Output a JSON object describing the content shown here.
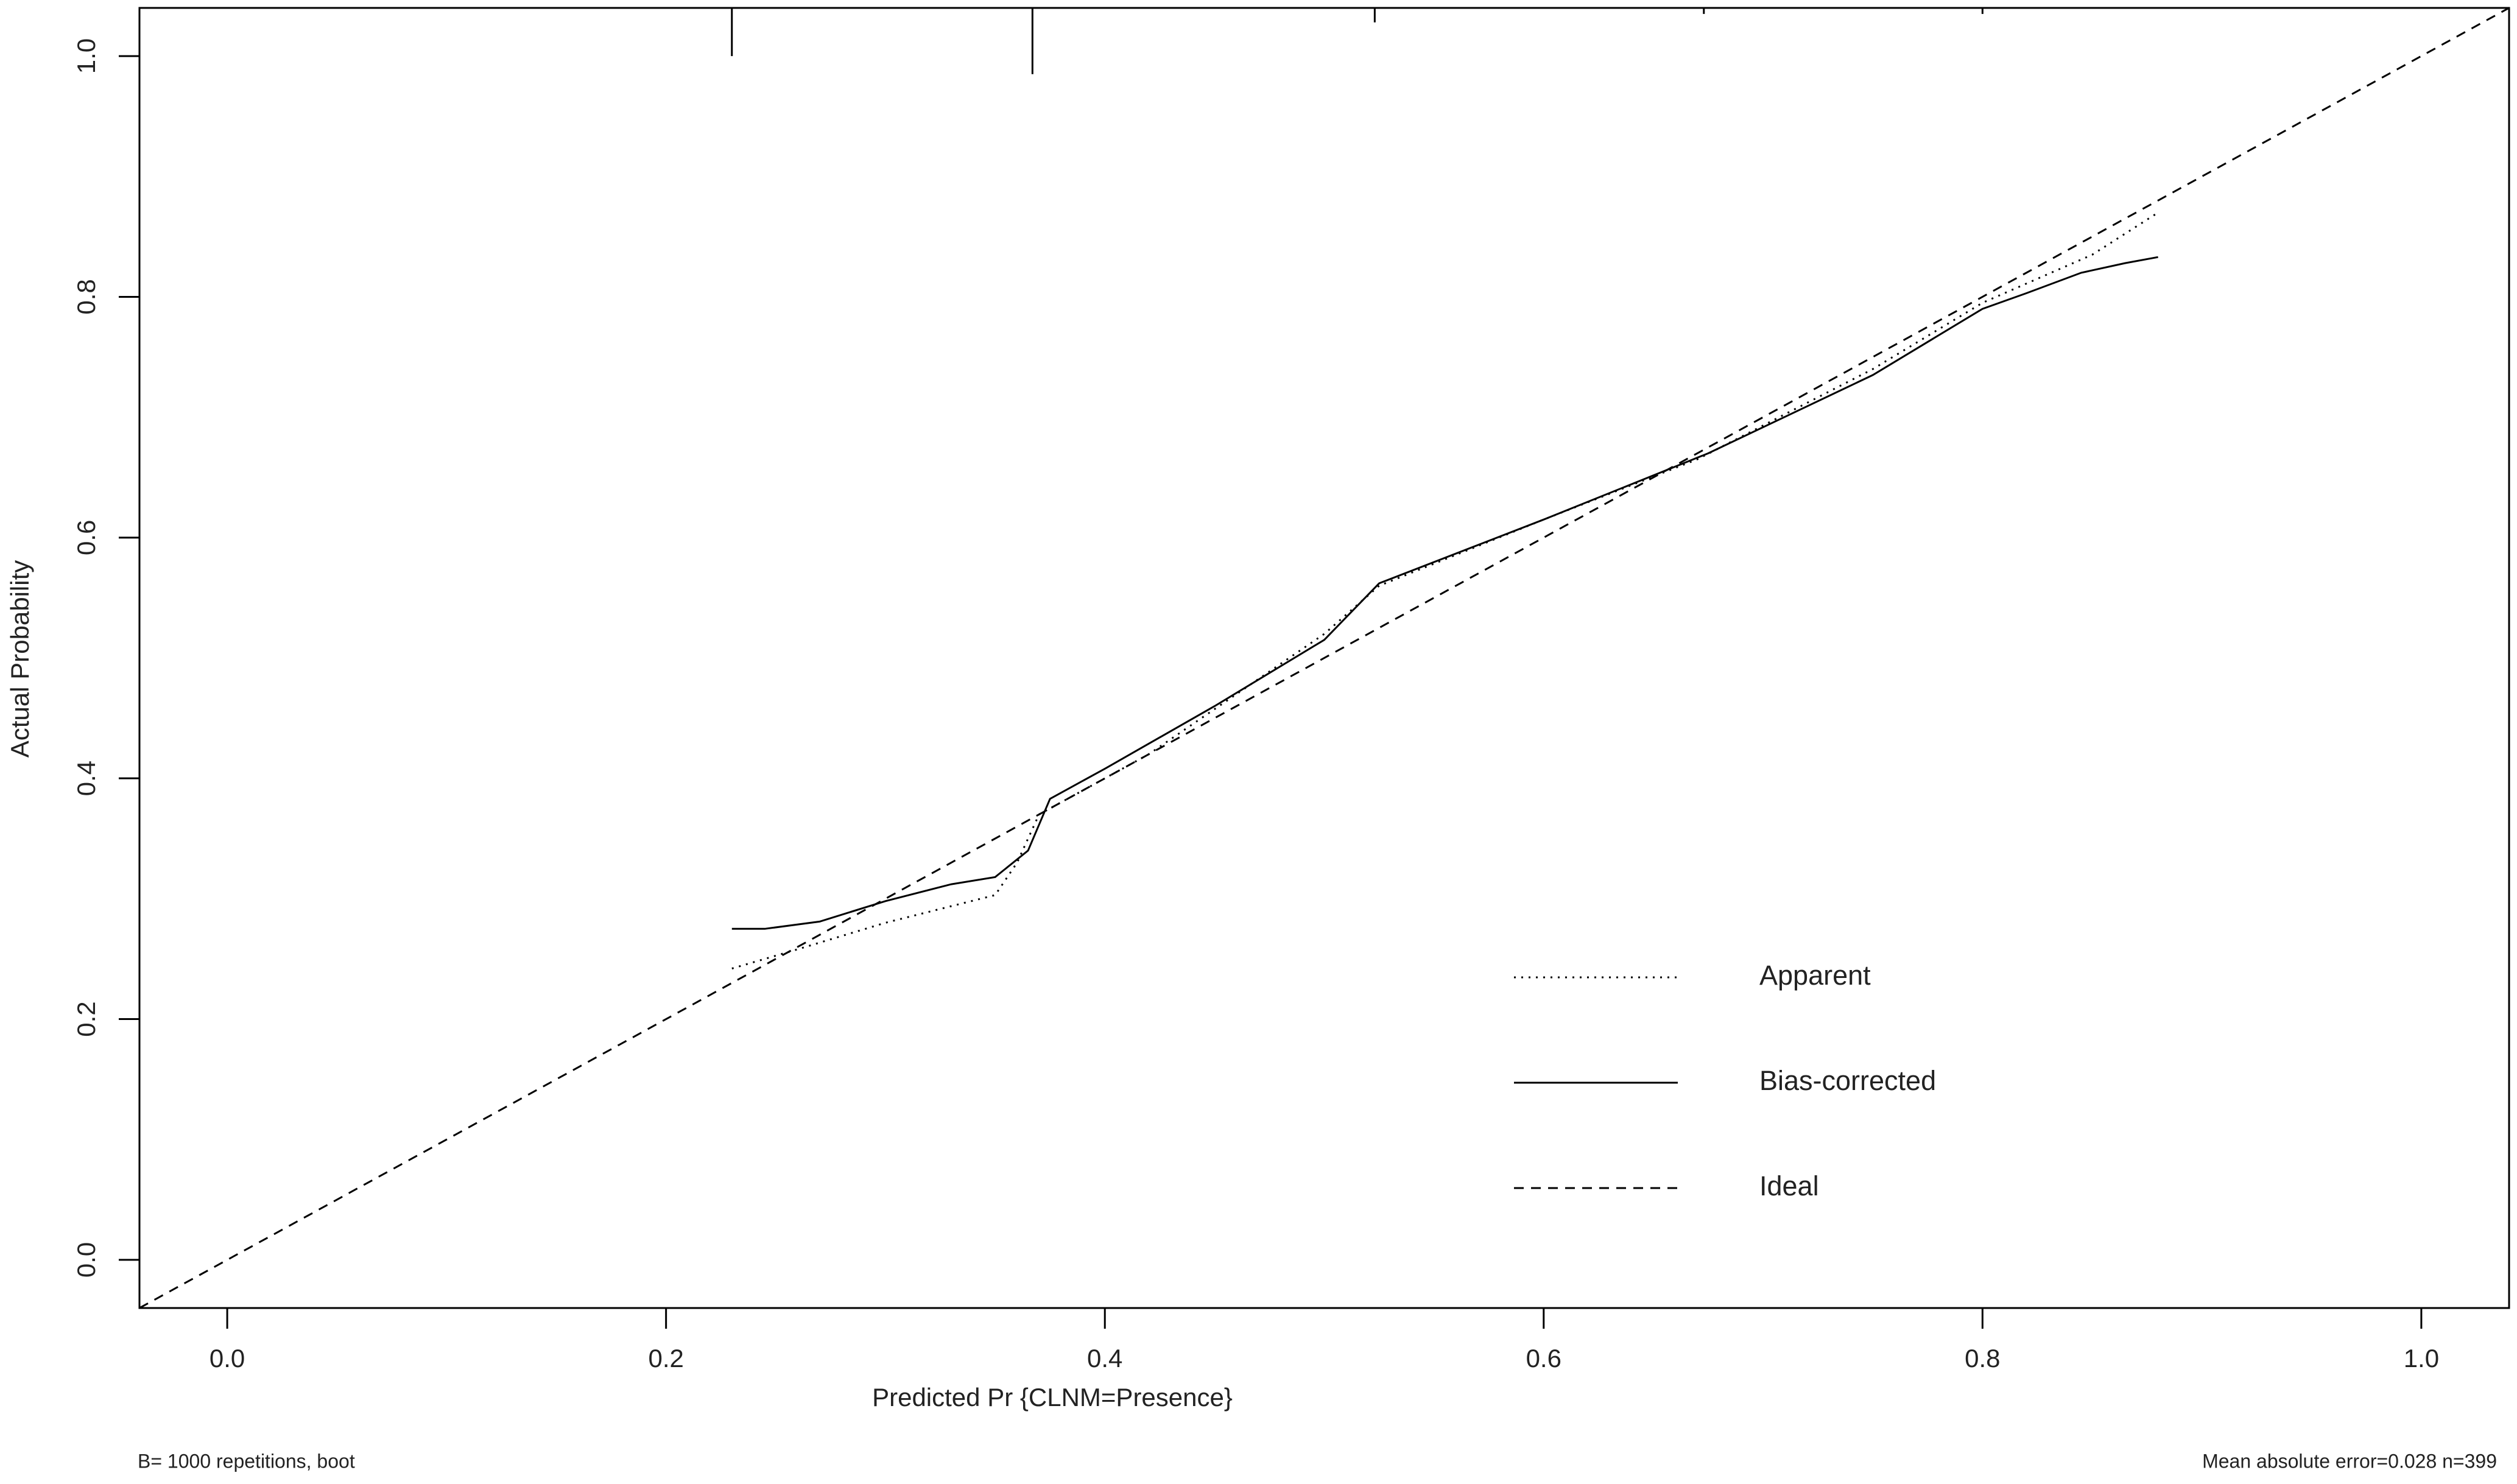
{
  "chart_data": {
    "type": "line",
    "xlabel": "Predicted Pr {CLNM=Presence}",
    "ylabel": "Actual Probability",
    "footnote_left": "B= 1000 repetitions, boot",
    "footnote_right": "Mean absolute error=0.028 n=399",
    "xlim": [
      -0.04,
      1.04
    ],
    "ylim": [
      -0.04,
      1.04
    ],
    "xticks": [
      {
        "value": 0,
        "label": "0.0"
      },
      {
        "value": 0.2,
        "label": "0.2"
      },
      {
        "value": 0.4,
        "label": "0.4"
      },
      {
        "value": 0.6,
        "label": "0.6"
      },
      {
        "value": 0.8,
        "label": "0.8"
      },
      {
        "value": 1,
        "label": "1.0"
      }
    ],
    "yticks": [
      {
        "value": 0,
        "label": "0.0"
      },
      {
        "value": 0.2,
        "label": "0.2"
      },
      {
        "value": 0.4,
        "label": "0.4"
      },
      {
        "value": 0.6,
        "label": "0.6"
      },
      {
        "value": 0.8,
        "label": "0.8"
      },
      {
        "value": 1,
        "label": "1.0"
      }
    ],
    "series": [
      {
        "name": "Apparent",
        "color": "#000000",
        "linestyle": "dotted",
        "x": [
          0.23,
          0.26,
          0.3,
          0.35,
          0.36,
          0.37,
          0.38,
          0.42,
          0.5,
          0.525,
          0.6,
          0.67,
          0.75,
          0.8,
          0.85,
          0.88
        ],
        "values": [
          0.242,
          0.258,
          0.28,
          0.303,
          0.33,
          0.37,
          0.38,
          0.42,
          0.52,
          0.56,
          0.615,
          0.665,
          0.74,
          0.795,
          0.835,
          0.87
        ]
      },
      {
        "name": "Bias-corrected",
        "color": "#000000",
        "linestyle": "solid",
        "x": [
          0.23,
          0.245,
          0.27,
          0.3,
          0.33,
          0.35,
          0.365,
          0.375,
          0.4,
          0.45,
          0.5,
          0.525,
          0.6,
          0.675,
          0.75,
          0.8,
          0.82,
          0.845,
          0.865,
          0.88
        ],
        "values": [
          0.275,
          0.275,
          0.281,
          0.298,
          0.312,
          0.318,
          0.34,
          0.383,
          0.408,
          0.46,
          0.515,
          0.562,
          0.615,
          0.67,
          0.735,
          0.79,
          0.803,
          0.82,
          0.828,
          0.833
        ]
      },
      {
        "name": "Ideal",
        "color": "#000000",
        "linestyle": "dashed",
        "x": [
          -0.04,
          1.04
        ],
        "values": [
          -0.04,
          1.04
        ]
      }
    ],
    "rug_x": [
      0.23,
      0.367,
      0.523,
      0.673,
      0.8
    ],
    "rug_len": [
      0.04,
      0.055,
      0.012,
      0.005,
      0.005
    ]
  }
}
